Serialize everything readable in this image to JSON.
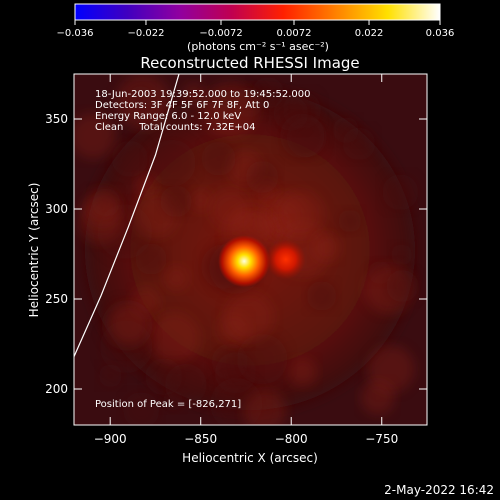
{
  "chart_data": {
    "type": "heatmap",
    "title": "Reconstructed RHESSI Image",
    "xlabel": "Heliocentric X (arcsec)",
    "ylabel": "Heliocentric Y (arcsec)",
    "xlim": [
      -920,
      -725
    ],
    "ylim": [
      180,
      375
    ],
    "x_ticks": [
      -900,
      -850,
      -800,
      -750
    ],
    "y_ticks": [
      200,
      250,
      300,
      350
    ],
    "x_tick_labels": [
      "−900",
      "−850",
      "−800",
      "−750"
    ],
    "y_tick_labels": [
      "200",
      "250",
      "300",
      "350"
    ],
    "colorbar": {
      "range": [
        -0.036,
        0.036
      ],
      "ticks": [
        -0.036,
        -0.022,
        -0.0072,
        0.0072,
        0.022,
        0.036
      ],
      "tick_labels": [
        "−0.036",
        "−0.022",
        "−0.0072",
        "0.0072",
        "0.022",
        "0.036"
      ],
      "unit_label": "(photons cm⁻² s⁻¹ asec⁻²)",
      "colors": [
        "#0000ff",
        "#4000c0",
        "#9000a0",
        "#c00050",
        "#ff2000",
        "#ff8000",
        "#ffe000",
        "#ffffff"
      ]
    },
    "annotations": [
      "18-Jun-2003 19:39:52.000 to 19:45:52.000",
      "Detectors: 3F 4F 5F 6F 7F 8F, Att 0",
      "Energy Range: 6.0 - 12.0 keV",
      "Clean     Total counts: 7.32E+04"
    ],
    "peak_label": "Position of Peak = [-826,271]",
    "sources": [
      {
        "x": -826,
        "y": 271,
        "intensity": 1.0
      },
      {
        "x": -803,
        "y": 272,
        "intensity": 0.55
      }
    ],
    "limb_curve": [
      [
        -920,
        218
      ],
      [
        -905,
        252
      ],
      [
        -890,
        290
      ],
      [
        -875,
        330
      ],
      [
        -862,
        375
      ]
    ],
    "colors": {
      "limb": "#ffffff",
      "axes": "#ffffff",
      "background": "#000000"
    }
  },
  "footer": {
    "date": "2-May-2022 16:42"
  }
}
